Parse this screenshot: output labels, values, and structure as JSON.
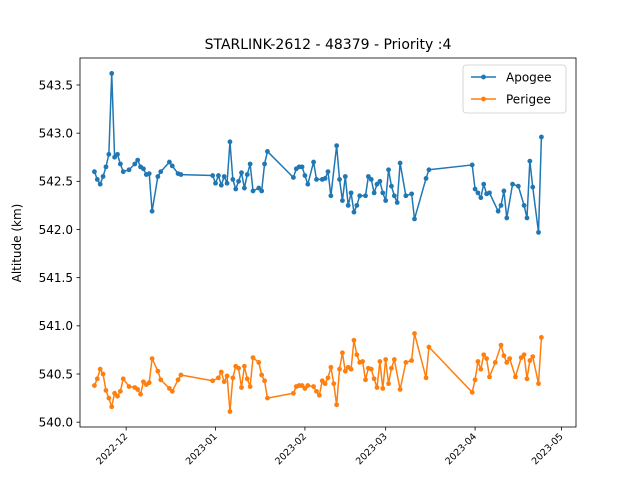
{
  "chart_data": {
    "type": "line",
    "title": "STARLINK-2612 - 48379 - Priority :4",
    "xlabel": "",
    "ylabel": "Altitude (km)",
    "xlim": [
      "2022-11-15",
      "2023-05-06"
    ],
    "ylim": [
      539.95,
      543.78
    ],
    "x_ticks": [
      "2022-12",
      "2023-01",
      "2023-02",
      "2023-03",
      "2023-04",
      "2023-05"
    ],
    "y_ticks": [
      "540.0",
      "540.5",
      "541.0",
      "541.5",
      "542.0",
      "542.5",
      "543.0",
      "543.5"
    ],
    "grid": false,
    "legend_position": "top-right",
    "series": [
      {
        "name": "Apogee",
        "color": "#1f77b4",
        "points": [
          [
            "2022-11-20",
            542.6
          ],
          [
            "2022-11-21",
            542.52
          ],
          [
            "2022-11-22",
            542.47
          ],
          [
            "2022-11-23",
            542.55
          ],
          [
            "2022-11-24",
            542.65
          ],
          [
            "2022-11-25",
            542.78
          ],
          [
            "2022-11-26",
            543.62
          ],
          [
            "2022-11-27",
            542.75
          ],
          [
            "2022-11-28",
            542.78
          ],
          [
            "2022-11-29",
            542.68
          ],
          [
            "2022-11-30",
            542.6
          ],
          [
            "2022-12-02",
            542.62
          ],
          [
            "2022-12-04",
            542.68
          ],
          [
            "2022-12-05",
            542.72
          ],
          [
            "2022-12-06",
            542.65
          ],
          [
            "2022-12-07",
            542.63
          ],
          [
            "2022-12-08",
            542.57
          ],
          [
            "2022-12-09",
            542.58
          ],
          [
            "2022-12-10",
            542.19
          ],
          [
            "2022-12-12",
            542.55
          ],
          [
            "2022-12-13",
            542.6
          ],
          [
            "2022-12-16",
            542.7
          ],
          [
            "2022-12-17",
            542.66
          ],
          [
            "2022-12-19",
            542.58
          ],
          [
            "2022-12-20",
            542.57
          ],
          [
            "2022-12-31",
            542.56
          ],
          [
            "2023-01-01",
            542.48
          ],
          [
            "2023-01-02",
            542.56
          ],
          [
            "2023-01-03",
            542.46
          ],
          [
            "2023-01-04",
            542.55
          ],
          [
            "2023-01-05",
            542.48
          ],
          [
            "2023-01-06",
            542.91
          ],
          [
            "2023-01-07",
            542.52
          ],
          [
            "2023-01-08",
            542.42
          ],
          [
            "2023-01-09",
            542.5
          ],
          [
            "2023-01-10",
            542.59
          ],
          [
            "2023-01-11",
            542.43
          ],
          [
            "2023-01-12",
            542.57
          ],
          [
            "2023-01-13",
            542.68
          ],
          [
            "2023-01-14",
            542.4
          ],
          [
            "2023-01-16",
            542.43
          ],
          [
            "2023-01-17",
            542.4
          ],
          [
            "2023-01-18",
            542.68
          ],
          [
            "2023-01-19",
            542.81
          ],
          [
            "2023-01-28",
            542.54
          ],
          [
            "2023-01-29",
            542.63
          ],
          [
            "2023-01-30",
            542.65
          ],
          [
            "2023-01-31",
            542.65
          ],
          [
            "2023-02-01",
            542.56
          ],
          [
            "2023-02-02",
            542.47
          ],
          [
            "2023-02-04",
            542.7
          ],
          [
            "2023-02-05",
            542.52
          ],
          [
            "2023-02-07",
            542.52
          ],
          [
            "2023-02-08",
            542.53
          ],
          [
            "2023-02-09",
            542.6
          ],
          [
            "2023-02-10",
            542.35
          ],
          [
            "2023-02-12",
            542.87
          ],
          [
            "2023-02-13",
            542.52
          ],
          [
            "2023-02-14",
            542.3
          ],
          [
            "2023-02-15",
            542.55
          ],
          [
            "2023-02-16",
            542.25
          ],
          [
            "2023-02-17",
            542.38
          ],
          [
            "2023-02-18",
            542.18
          ],
          [
            "2023-02-19",
            542.25
          ],
          [
            "2023-02-20",
            542.35
          ],
          [
            "2023-02-22",
            542.35
          ],
          [
            "2023-02-23",
            542.55
          ],
          [
            "2023-02-24",
            542.52
          ],
          [
            "2023-02-25",
            542.38
          ],
          [
            "2023-02-26",
            542.47
          ],
          [
            "2023-02-27",
            542.5
          ],
          [
            "2023-02-28",
            542.38
          ],
          [
            "2023-03-01",
            542.3
          ],
          [
            "2023-03-02",
            542.62
          ],
          [
            "2023-03-03",
            542.45
          ],
          [
            "2023-03-04",
            542.35
          ],
          [
            "2023-03-05",
            542.28
          ],
          [
            "2023-03-06",
            542.69
          ],
          [
            "2023-03-08",
            542.35
          ],
          [
            "2023-03-10",
            542.37
          ],
          [
            "2023-03-11",
            542.11
          ],
          [
            "2023-03-15",
            542.53
          ],
          [
            "2023-03-16",
            542.62
          ],
          [
            "2023-03-31",
            542.67
          ],
          [
            "2023-04-01",
            542.42
          ],
          [
            "2023-04-02",
            542.38
          ],
          [
            "2023-04-03",
            542.33
          ],
          [
            "2023-04-04",
            542.47
          ],
          [
            "2023-04-05",
            542.37
          ],
          [
            "2023-04-06",
            542.38
          ],
          [
            "2023-04-09",
            542.19
          ],
          [
            "2023-04-10",
            542.25
          ],
          [
            "2023-04-11",
            542.4
          ],
          [
            "2023-04-12",
            542.12
          ],
          [
            "2023-04-14",
            542.47
          ],
          [
            "2023-04-16",
            542.45
          ],
          [
            "2023-04-18",
            542.25
          ],
          [
            "2023-04-19",
            542.12
          ],
          [
            "2023-04-20",
            542.71
          ],
          [
            "2023-04-21",
            542.44
          ],
          [
            "2023-04-23",
            541.97
          ],
          [
            "2023-04-24",
            542.96
          ]
        ]
      },
      {
        "name": "Perigee",
        "color": "#ff7f0e",
        "points": [
          [
            "2022-11-20",
            540.38
          ],
          [
            "2022-11-21",
            540.45
          ],
          [
            "2022-11-22",
            540.55
          ],
          [
            "2022-11-23",
            540.5
          ],
          [
            "2022-11-24",
            540.33
          ],
          [
            "2022-11-25",
            540.25
          ],
          [
            "2022-11-26",
            540.16
          ],
          [
            "2022-11-27",
            540.3
          ],
          [
            "2022-11-28",
            540.27
          ],
          [
            "2022-11-29",
            540.32
          ],
          [
            "2022-11-30",
            540.45
          ],
          [
            "2022-12-02",
            540.37
          ],
          [
            "2022-12-04",
            540.36
          ],
          [
            "2022-12-05",
            540.34
          ],
          [
            "2022-12-06",
            540.29
          ],
          [
            "2022-12-07",
            540.42
          ],
          [
            "2022-12-08",
            540.39
          ],
          [
            "2022-12-09",
            540.41
          ],
          [
            "2022-12-10",
            540.66
          ],
          [
            "2022-12-12",
            540.53
          ],
          [
            "2022-12-13",
            540.44
          ],
          [
            "2022-12-16",
            540.35
          ],
          [
            "2022-12-17",
            540.32
          ],
          [
            "2022-12-19",
            540.44
          ],
          [
            "2022-12-20",
            540.49
          ],
          [
            "2022-12-31",
            540.43
          ],
          [
            "2023-01-02",
            540.46
          ],
          [
            "2023-01-03",
            540.52
          ],
          [
            "2023-01-04",
            540.42
          ],
          [
            "2023-01-05",
            540.48
          ],
          [
            "2023-01-06",
            540.11
          ],
          [
            "2023-01-07",
            540.46
          ],
          [
            "2023-01-08",
            540.58
          ],
          [
            "2023-01-09",
            540.56
          ],
          [
            "2023-01-10",
            540.36
          ],
          [
            "2023-01-11",
            540.58
          ],
          [
            "2023-01-12",
            540.45
          ],
          [
            "2023-01-13",
            540.37
          ],
          [
            "2023-01-14",
            540.67
          ],
          [
            "2023-01-16",
            540.62
          ],
          [
            "2023-01-17",
            540.49
          ],
          [
            "2023-01-18",
            540.43
          ],
          [
            "2023-01-19",
            540.25
          ],
          [
            "2023-01-28",
            540.3
          ],
          [
            "2023-01-29",
            540.37
          ],
          [
            "2023-01-30",
            540.38
          ],
          [
            "2023-01-31",
            540.38
          ],
          [
            "2023-02-01",
            540.35
          ],
          [
            "2023-02-02",
            540.38
          ],
          [
            "2023-02-04",
            540.37
          ],
          [
            "2023-02-05",
            540.32
          ],
          [
            "2023-02-06",
            540.28
          ],
          [
            "2023-02-07",
            540.43
          ],
          [
            "2023-02-08",
            540.4
          ],
          [
            "2023-02-09",
            540.46
          ],
          [
            "2023-02-10",
            540.57
          ],
          [
            "2023-02-11",
            540.4
          ],
          [
            "2023-02-12",
            540.18
          ],
          [
            "2023-02-13",
            540.55
          ],
          [
            "2023-02-14",
            540.72
          ],
          [
            "2023-02-15",
            540.53
          ],
          [
            "2023-02-16",
            540.57
          ],
          [
            "2023-02-17",
            540.55
          ],
          [
            "2023-02-18",
            540.85
          ],
          [
            "2023-02-19",
            540.7
          ],
          [
            "2023-02-20",
            540.62
          ],
          [
            "2023-02-21",
            540.63
          ],
          [
            "2023-02-22",
            540.44
          ],
          [
            "2023-02-23",
            540.56
          ],
          [
            "2023-02-24",
            540.55
          ],
          [
            "2023-02-25",
            540.45
          ],
          [
            "2023-02-26",
            540.36
          ],
          [
            "2023-02-27",
            540.63
          ],
          [
            "2023-02-28",
            540.35
          ],
          [
            "2023-03-01",
            540.65
          ],
          [
            "2023-03-02",
            540.4
          ],
          [
            "2023-03-03",
            540.56
          ],
          [
            "2023-03-04",
            540.65
          ],
          [
            "2023-03-06",
            540.34
          ],
          [
            "2023-03-08",
            540.62
          ],
          [
            "2023-03-10",
            540.64
          ],
          [
            "2023-03-11",
            540.92
          ],
          [
            "2023-03-15",
            540.46
          ],
          [
            "2023-03-16",
            540.78
          ],
          [
            "2023-03-31",
            540.31
          ],
          [
            "2023-04-01",
            540.44
          ],
          [
            "2023-04-02",
            540.63
          ],
          [
            "2023-04-03",
            540.55
          ],
          [
            "2023-04-04",
            540.7
          ],
          [
            "2023-04-05",
            540.66
          ],
          [
            "2023-04-06",
            540.47
          ],
          [
            "2023-04-08",
            540.62
          ],
          [
            "2023-04-10",
            540.8
          ],
          [
            "2023-04-11",
            540.69
          ],
          [
            "2023-04-12",
            540.62
          ],
          [
            "2023-04-13",
            540.66
          ],
          [
            "2023-04-15",
            540.47
          ],
          [
            "2023-04-17",
            540.67
          ],
          [
            "2023-04-18",
            540.7
          ],
          [
            "2023-04-19",
            540.45
          ],
          [
            "2023-04-20",
            540.64
          ],
          [
            "2023-04-21",
            540.68
          ],
          [
            "2023-04-23",
            540.4
          ],
          [
            "2023-04-24",
            540.88
          ]
        ]
      }
    ]
  }
}
